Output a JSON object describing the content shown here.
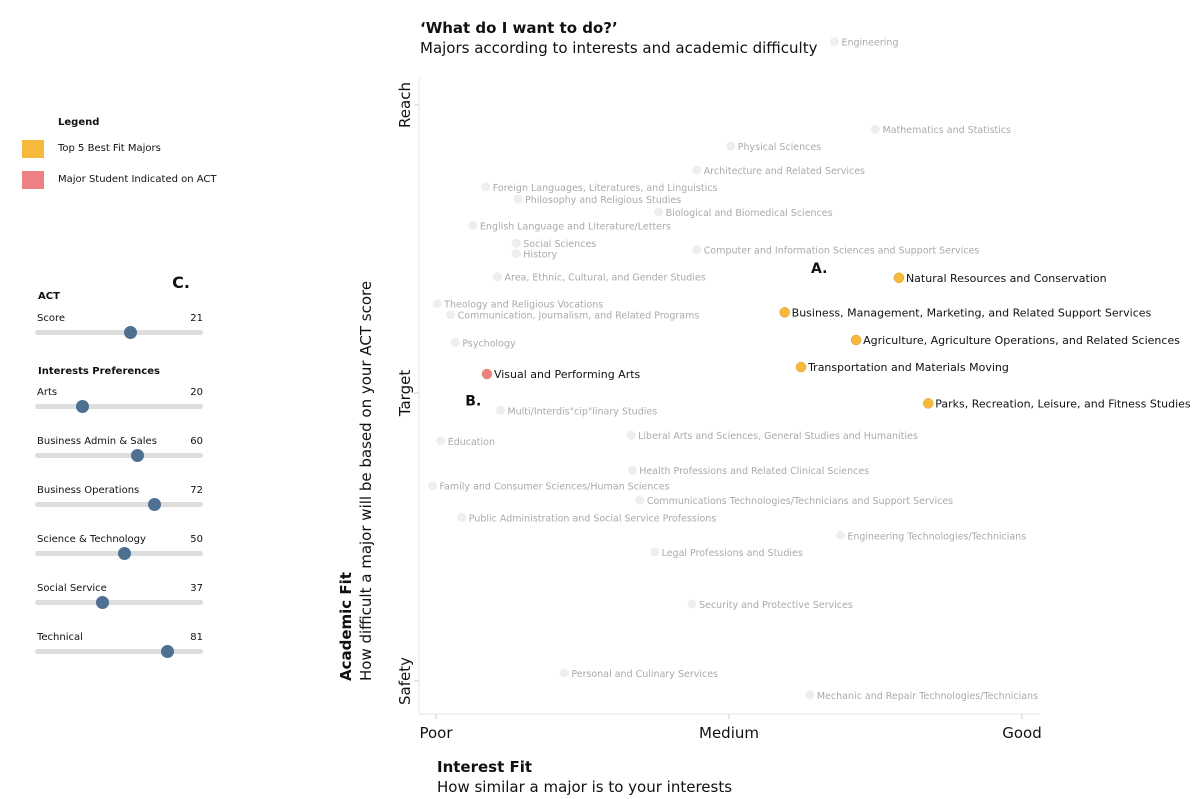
{
  "legend": {
    "title": "Legend",
    "items": [
      {
        "label": "Top 5 Best Fit Majors",
        "color": "#f6b93b"
      },
      {
        "label": "Major Student Indicated on ACT",
        "color": "#ec8084"
      }
    ]
  },
  "controls": {
    "panel_label": "C.",
    "act": {
      "title": "ACT",
      "score": {
        "label": "Score",
        "value": 21,
        "fraction": 0.57
      }
    },
    "interests": {
      "title": "Interests Preferences",
      "items": [
        {
          "label": "Arts",
          "value": 20,
          "fraction": 0.28
        },
        {
          "label": "Business Admin & Sales",
          "value": 60,
          "fraction": 0.61
        },
        {
          "label": "Business Operations",
          "value": 72,
          "fraction": 0.71
        },
        {
          "label": "Science & Technology",
          "value": 50,
          "fraction": 0.53
        },
        {
          "label": "Social Service",
          "value": 37,
          "fraction": 0.4
        },
        {
          "label": "Technical",
          "value": 81,
          "fraction": 0.79
        }
      ]
    },
    "thumb_color": "#4e7091"
  },
  "chart_data": {
    "type": "scatter",
    "title": "‘What do I want to do?’",
    "subtitle": "Majors according to interests and academic difficulty",
    "xlabel": "Interest Fit",
    "xlabel_sub": "How similar a major is to your interests",
    "ylabel": "Academic Fit",
    "ylabel_sub": "How difficult a major will be based on your ACT score",
    "xlim": [
      -0.03,
      1.03
    ],
    "ylim": [
      -0.1,
      1.08
    ],
    "x_ticks": [
      {
        "value": 0,
        "label": "Poor"
      },
      {
        "value": 0.5,
        "label": "Medium"
      },
      {
        "value": 1,
        "label": "Good"
      }
    ],
    "y_ticks": [
      {
        "value": 0,
        "label": "Safety"
      },
      {
        "value": 0.5,
        "label": "Target"
      },
      {
        "value": 1,
        "label": "Reach"
      }
    ],
    "annotations": [
      {
        "label": "A.",
        "x": 0.64,
        "y": 0.708
      },
      {
        "label": "B.",
        "x": 0.05,
        "y": 0.478
      }
    ],
    "colors": {
      "muted": "#eeeeee",
      "top": "#f6b93b",
      "indicated": "#ec8084"
    },
    "points": [
      {
        "label": "Engineering",
        "x": 0.68,
        "y": 1.11,
        "group": "other"
      },
      {
        "label": "Mathematics and Statistics",
        "x": 0.75,
        "y": 0.958,
        "group": "other"
      },
      {
        "label": "Physical Sciences",
        "x": 0.503,
        "y": 0.929,
        "group": "other"
      },
      {
        "label": "Architecture and Related Services",
        "x": 0.445,
        "y": 0.887,
        "group": "other"
      },
      {
        "label": "Foreign Languages, Literatures, and Linguistics",
        "x": 0.085,
        "y": 0.858,
        "group": "other"
      },
      {
        "label": "Philosophy and Religious Studies",
        "x": 0.14,
        "y": 0.837,
        "group": "other"
      },
      {
        "label": "Biological and Biomedical Sciences",
        "x": 0.38,
        "y": 0.814,
        "group": "other"
      },
      {
        "label": "English Language and Literature/Letters",
        "x": 0.063,
        "y": 0.791,
        "group": "other"
      },
      {
        "label": "Social Sciences",
        "x": 0.137,
        "y": 0.76,
        "group": "other"
      },
      {
        "label": "History",
        "x": 0.137,
        "y": 0.742,
        "group": "other"
      },
      {
        "label": "Computer and Information Sciences and Support Services",
        "x": 0.445,
        "y": 0.749,
        "group": "other"
      },
      {
        "label": "Area, Ethnic, Cultural, and Gender Studies",
        "x": 0.105,
        "y": 0.702,
        "group": "other"
      },
      {
        "label": "Theology and Religious Vocations",
        "x": 0.002,
        "y": 0.655,
        "group": "other"
      },
      {
        "label": "Communication, Journalism, and Related Programs",
        "x": 0.025,
        "y": 0.636,
        "group": "other"
      },
      {
        "label": "Psychology",
        "x": 0.033,
        "y": 0.588,
        "group": "other"
      },
      {
        "label": "Multi/Interdis\"cip\"linary Studies",
        "x": 0.11,
        "y": 0.47,
        "group": "other"
      },
      {
        "label": "Education",
        "x": 0.008,
        "y": 0.417,
        "group": "other"
      },
      {
        "label": "Liberal Arts and Sciences, General Studies and Humanities",
        "x": 0.333,
        "y": 0.427,
        "group": "other"
      },
      {
        "label": "Health Professions and Related Clinical Sciences",
        "x": 0.335,
        "y": 0.366,
        "group": "other"
      },
      {
        "label": "Family and Consumer Sciences/Human Sciences",
        "x": -0.006,
        "y": 0.339,
        "group": "other"
      },
      {
        "label": "Communications Technologies/Technicians and Support Services",
        "x": 0.348,
        "y": 0.314,
        "group": "other"
      },
      {
        "label": "Public Administration and Social Service Professions",
        "x": 0.044,
        "y": 0.284,
        "group": "other"
      },
      {
        "label": "Engineering Technologies/Technicians",
        "x": 0.69,
        "y": 0.253,
        "group": "other"
      },
      {
        "label": "Legal Professions and Studies",
        "x": 0.373,
        "y": 0.224,
        "group": "other"
      },
      {
        "label": "Security and Protective Services",
        "x": 0.437,
        "y": 0.134,
        "group": "other"
      },
      {
        "label": "Personal and Culinary Services",
        "x": 0.219,
        "y": 0.014,
        "group": "other"
      },
      {
        "label": "Mechanic and Repair Technologies/Technicians",
        "x": 0.638,
        "y": -0.024,
        "group": "other"
      },
      {
        "label": "Visual and Performing Arts",
        "x": 0.087,
        "y": 0.533,
        "group": "indicated"
      },
      {
        "label": "Natural Resources and Conservation",
        "x": 0.79,
        "y": 0.7,
        "group": "top"
      },
      {
        "label": "Business, Management, Marketing, and Related Support Services",
        "x": 0.595,
        "y": 0.64,
        "group": "top"
      },
      {
        "label": "Agriculture, Agriculture Operations, and Related Sciences",
        "x": 0.717,
        "y": 0.592,
        "group": "top"
      },
      {
        "label": "Transportation and Materials Moving",
        "x": 0.623,
        "y": 0.545,
        "group": "top"
      },
      {
        "label": "Parks, Recreation, Leisure, and Fitness Studies",
        "x": 0.84,
        "y": 0.482,
        "group": "top"
      }
    ]
  }
}
